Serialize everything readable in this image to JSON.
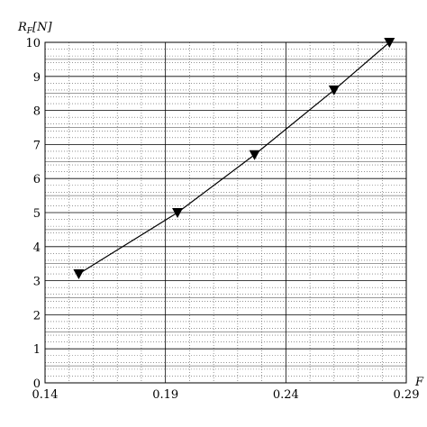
{
  "chart_data": {
    "type": "line",
    "ylabel_main": "R",
    "ylabel_sub": "F",
    "ylabel_unit": "[N]",
    "xlabel_main": "F",
    "xlim": [
      0.14,
      0.29
    ],
    "ylim": [
      0,
      10
    ],
    "x_ticks": [
      0.14,
      0.19,
      0.24,
      0.29
    ],
    "x_tick_labels": [
      "0.14",
      "0.19",
      "0.24",
      "0.29"
    ],
    "y_ticks": [
      0,
      1,
      2,
      3,
      4,
      5,
      6,
      7,
      8,
      9,
      10
    ],
    "y_tick_labels": [
      "0",
      "1",
      "2",
      "3",
      "4",
      "5",
      "6",
      "7",
      "8",
      "9",
      "10"
    ],
    "grid": true,
    "marker": "triangle-down",
    "series": [
      {
        "x": [
          0.154,
          0.195,
          0.227,
          0.26,
          0.283
        ],
        "y": [
          3.2,
          5.0,
          6.7,
          8.6,
          10.0
        ]
      }
    ],
    "colors": {
      "line": "#000000",
      "grid_major": "#000000",
      "grid_minor": "#555555"
    }
  }
}
